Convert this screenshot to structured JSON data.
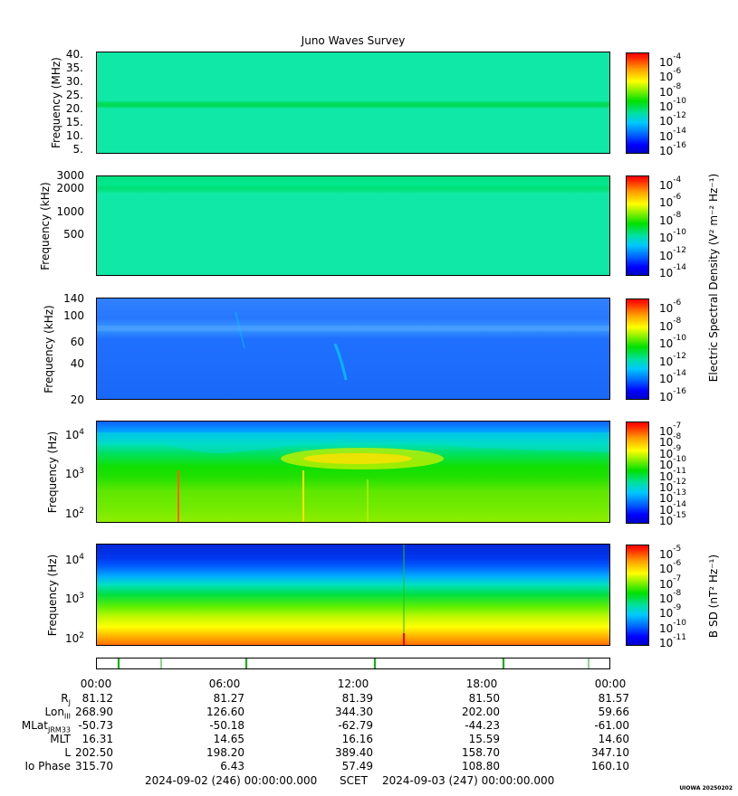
{
  "title": "Juno Waves Survey",
  "panels": [
    {
      "ylabel": "Frequency (MHz)",
      "ticks": [
        "40.",
        "35.",
        "30.",
        "25.",
        "20.",
        "15.",
        "10.",
        "5."
      ],
      "cbar_ticks": [
        "-4",
        "-6",
        "-8",
        "-10",
        "-12",
        "-14",
        "-16"
      ]
    },
    {
      "ylabel": "Frequency (kHz)",
      "ticks": [
        "3000",
        "2000",
        "1000",
        "500"
      ],
      "cbar_ticks": [
        "-4",
        "-6",
        "-8",
        "-10",
        "-12",
        "-14"
      ]
    },
    {
      "ylabel": "Frequency (kHz)",
      "ticks": [
        "140",
        "100",
        "60",
        "40",
        "20"
      ],
      "cbar_ticks": [
        "-6",
        "-8",
        "-10",
        "-12",
        "-14",
        "-16"
      ]
    },
    {
      "ylabel": "Frequency (Hz)",
      "ticks": [
        "4",
        "3",
        "2"
      ],
      "cbar_ticks": [
        "-7",
        "-8",
        "-9",
        "-10",
        "-11",
        "-12",
        "-13",
        "-14",
        "-15"
      ]
    },
    {
      "ylabel": "Frequency (Hz)",
      "ticks": [
        "4",
        "3",
        "2"
      ],
      "cbar_ticks": [
        "-5",
        "-6",
        "-7",
        "-8",
        "-9",
        "-10",
        "-11"
      ]
    }
  ],
  "cbar_base": "10",
  "cbar_title_electric": "Electric Spectral Density (V² m⁻² Hz⁻¹)",
  "cbar_title_magnetic": "B SD (nT² Hz⁻¹)",
  "time_labels": [
    "00:00",
    "06:00",
    "12:00",
    "18:00",
    "00:00"
  ],
  "ephemeris": {
    "labels": [
      "RJ",
      "LonIII",
      "MLatJRM33",
      "MLT",
      "L",
      "Io Phase"
    ],
    "label_main": [
      "R",
      "Lon",
      "MLat",
      "MLT",
      "L",
      "Io Phase"
    ],
    "label_sub": [
      "J",
      "III",
      "JRM33",
      "",
      "",
      ""
    ],
    "rows": [
      [
        "81.12",
        "81.27",
        "81.39",
        "81.50",
        "81.57"
      ],
      [
        "268.90",
        "126.60",
        "344.30",
        "202.00",
        "59.66"
      ],
      [
        "-50.73",
        "-50.18",
        "-62.79",
        "-44.23",
        "-61.00"
      ],
      [
        "16.31",
        "14.65",
        "16.16",
        "15.59",
        "14.60"
      ],
      [
        "202.50",
        "198.20",
        "389.40",
        "158.70",
        "347.10"
      ],
      [
        "315.70",
        "6.43",
        "57.49",
        "108.80",
        "160.10"
      ]
    ]
  },
  "footer": {
    "start": "2024-09-02 (246) 00:00:00.000",
    "scet": "SCET",
    "end": "2024-09-03 (247) 00:00:00.000"
  },
  "stamp": "UIOWA 20250202",
  "chart_data": {
    "type": "heatmap",
    "title": "Juno Waves Survey",
    "x_range": [
      "2024-09-02 00:00",
      "2024-09-03 00:00"
    ],
    "panels": [
      {
        "ylabel": "Frequency (MHz)",
        "ylim": [
          3,
          41
        ],
        "colorbar_range": [
          "1e-17",
          "1e-4"
        ]
      },
      {
        "ylabel": "Frequency (kHz)",
        "ylim": [
          150,
          3000
        ],
        "yscale": "log",
        "colorbar_range": [
          "1e-15",
          "1e-4"
        ]
      },
      {
        "ylabel": "Frequency (kHz)",
        "ylim": [
          20,
          140
        ],
        "yscale": "log",
        "colorbar_range": [
          "1e-16",
          "1e-6"
        ]
      },
      {
        "ylabel": "Frequency (Hz)",
        "ylim": [
          50,
          20000
        ],
        "yscale": "log",
        "colorbar_range": [
          "1e-15",
          "1e-7"
        ]
      },
      {
        "ylabel": "Frequency (Hz)",
        "ylim": [
          50,
          20000
        ],
        "yscale": "log",
        "colorbar_range": [
          "1e-11",
          "1e-5"
        ]
      }
    ]
  }
}
